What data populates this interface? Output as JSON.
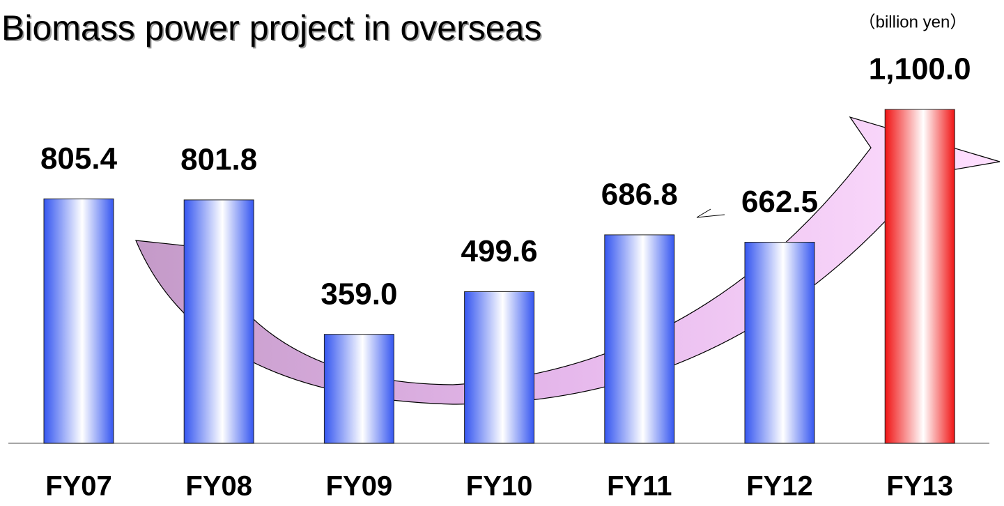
{
  "chart_data": {
    "type": "bar",
    "title": "Biomass power project in overseas",
    "unit_label": "（billion yen）",
    "categories": [
      "FY07",
      "FY08",
      "FY09",
      "FY10",
      "FY11",
      "FY12",
      "FY13"
    ],
    "values": [
      805.4,
      801.8,
      359.0,
      499.6,
      686.8,
      662.5,
      1100.0
    ],
    "value_labels": [
      "805.4",
      "801.8",
      "359.0",
      "499.6",
      "686.8",
      "662.5",
      "1,100.0"
    ],
    "colors": [
      "#3556f0",
      "#3556f0",
      "#3556f0",
      "#3556f0",
      "#3556f0",
      "#3556f0",
      "#f01414"
    ]
  }
}
